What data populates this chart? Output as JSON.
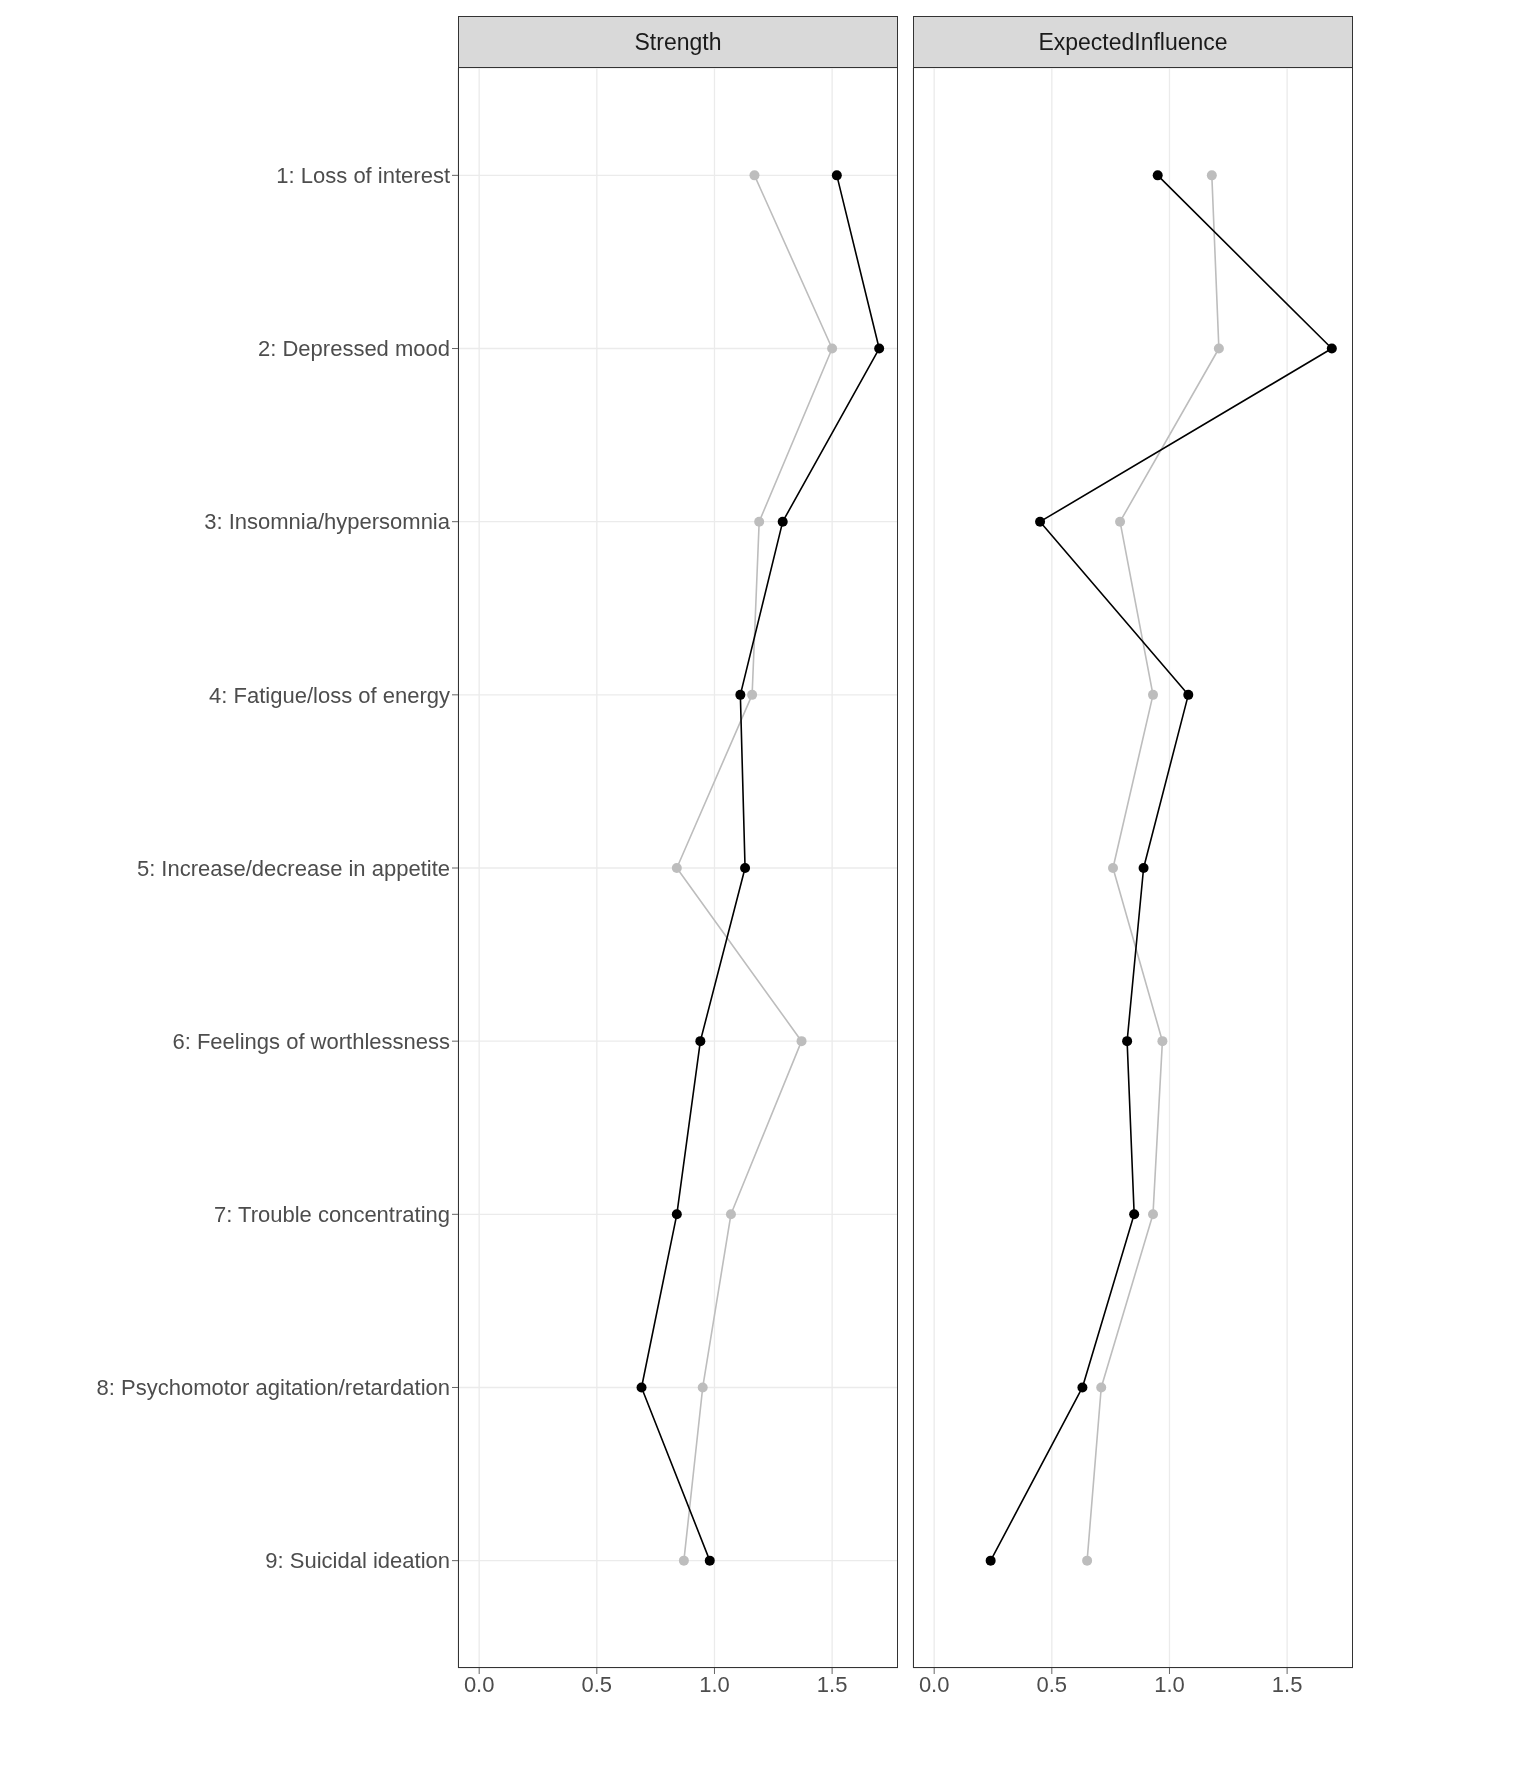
{
  "chart_data": [
    {
      "type": "line",
      "title": "Strength",
      "orientation": "horizontal",
      "categories": [
        "1: Loss of interest",
        "2: Depressed mood",
        "3: Insomnia/hypersomnia",
        "4: Fatigue/loss of energy",
        "5: Increase/decrease in appetite",
        "6: Feelings of worthlessness",
        "7: Trouble concentrating",
        "8: Psychomotor agitation/retardation",
        "9: Suicidal ideation"
      ],
      "series": [
        {
          "color": "#bdbdbd",
          "values": [
            1.17,
            1.5,
            1.19,
            1.16,
            0.84,
            1.37,
            1.07,
            0.95,
            0.87
          ]
        },
        {
          "color": "#000000",
          "values": [
            1.52,
            1.7,
            1.29,
            1.11,
            1.13,
            0.94,
            0.84,
            0.69,
            0.98
          ]
        }
      ],
      "xlim": [
        -0.09,
        1.78
      ],
      "xticks": [
        {
          "value": 0,
          "label": "0.0"
        },
        {
          "value": 0.5,
          "label": "0.5"
        },
        {
          "value": 1,
          "label": "1.0"
        },
        {
          "value": 1.5,
          "label": "1.5"
        }
      ],
      "grid": true,
      "marker": "circle",
      "line_style": "solid"
    },
    {
      "type": "line",
      "title": "ExpectedInfluence",
      "orientation": "horizontal",
      "categories": [
        null,
        null,
        null,
        null,
        null,
        null,
        null,
        null,
        null
      ],
      "series": [
        {
          "color": "#bdbdbd",
          "values": [
            1.18,
            1.21,
            0.79,
            0.93,
            0.76,
            0.97,
            0.93,
            0.71,
            0.65
          ]
        },
        {
          "color": "#000000",
          "values": [
            0.95,
            1.69,
            0.45,
            1.08,
            0.89,
            0.82,
            0.85,
            0.63,
            0.24
          ]
        }
      ],
      "xlim": [
        -0.09,
        1.78
      ],
      "xticks": [
        {
          "value": 0,
          "label": "0.0"
        },
        {
          "value": 0.5,
          "label": "0.5"
        },
        {
          "value": 1,
          "label": "1.0"
        },
        {
          "value": 1.5,
          "label": "1.5"
        }
      ],
      "grid": true,
      "marker": "circle",
      "line_style": "solid",
      "tick_labels": "x"
    }
  ]
}
